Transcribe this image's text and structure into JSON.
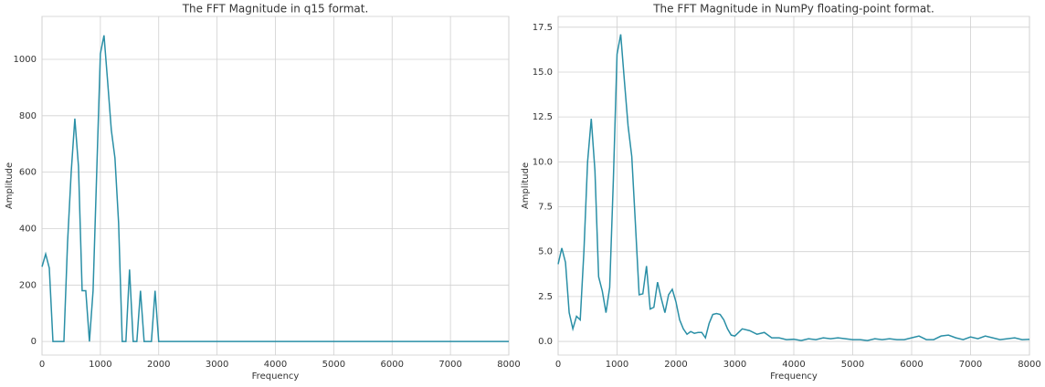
{
  "chart_data": [
    {
      "type": "line",
      "title": "The FFT Magnitude in q15 format.",
      "x_label": "Frequency",
      "y_label": "Amplitude",
      "xlim": [
        0,
        8000
      ],
      "ylim": [
        -48,
        1152
      ],
      "xticks": [
        0,
        1000,
        2000,
        3000,
        4000,
        5000,
        6000,
        7000,
        8000
      ],
      "yticks": [
        0,
        200,
        400,
        600,
        800,
        1000
      ],
      "grid": true,
      "x": [
        0,
        62.5,
        125,
        187.5,
        250,
        312.5,
        375,
        437.5,
        500,
        562.5,
        625,
        687.5,
        750,
        812.5,
        875,
        937.5,
        1000,
        1062.5,
        1125,
        1187.5,
        1250,
        1312.5,
        1375,
        1437.5,
        1500,
        1562.5,
        1625,
        1687.5,
        1750,
        1812.5,
        1875,
        1937.5,
        2000,
        8000
      ],
      "series": [
        {
          "name": "q15",
          "color": "#2a8fa6",
          "values": [
            265,
            310,
            260,
            0,
            0,
            0,
            0,
            350,
            600,
            790,
            620,
            180,
            180,
            0,
            180,
            600,
            1020,
            1085,
            920,
            750,
            650,
            420,
            0,
            0,
            255,
            0,
            0,
            180,
            0,
            0,
            0,
            180,
            0,
            0
          ]
        }
      ]
    },
    {
      "type": "line",
      "title": "The FFT Magnitude in NumPy floating-point format.",
      "x_label": "Frequency",
      "y_label": "Amplitude",
      "xlim": [
        0,
        8000
      ],
      "ylim": [
        -0.76,
        18.1
      ],
      "xticks": [
        0,
        1000,
        2000,
        3000,
        4000,
        5000,
        6000,
        7000,
        8000
      ],
      "yticks": [
        {
          "value": 0,
          "label": "0.0"
        },
        2.5,
        {
          "value": 5,
          "label": "5.0"
        },
        7.5,
        {
          "value": 10,
          "label": "10.0"
        },
        12.5,
        {
          "value": 15,
          "label": "15.0"
        },
        17.5
      ],
      "grid": true,
      "x": [
        0,
        62.5,
        125,
        187.5,
        250,
        312.5,
        375,
        437.5,
        500,
        562.5,
        625,
        687.5,
        750,
        812.5,
        875,
        937.5,
        1000,
        1062.5,
        1125,
        1187.5,
        1250,
        1312.5,
        1375,
        1437.5,
        1500,
        1562.5,
        1625,
        1687.5,
        1750,
        1812.5,
        1875,
        1937.5,
        2000,
        2062.5,
        2125,
        2187.5,
        2250,
        2312.5,
        2375,
        2437.5,
        2500,
        2562.5,
        2625,
        2687.5,
        2750,
        2812.5,
        2875,
        2937.5,
        3000,
        3125,
        3250,
        3375,
        3500,
        3625,
        3750,
        3875,
        4000,
        4125,
        4250,
        4375,
        4500,
        4625,
        4750,
        4875,
        5000,
        5125,
        5250,
        5375,
        5500,
        5625,
        5750,
        5875,
        6000,
        6125,
        6250,
        6375,
        6500,
        6625,
        6750,
        6875,
        7000,
        7125,
        7250,
        7375,
        7500,
        7625,
        7750,
        7875,
        8000
      ],
      "series": [
        {
          "name": "numpy",
          "color": "#2a8fa6",
          "values": [
            4.3,
            5.2,
            4.4,
            1.6,
            0.7,
            1.4,
            1.2,
            5,
            10,
            12.4,
            9.5,
            3.6,
            2.8,
            1.6,
            3,
            9,
            16,
            17.1,
            14.5,
            12,
            10.3,
            6.5,
            2.6,
            2.65,
            4.2,
            1.8,
            1.9,
            3.3,
            2.4,
            1.6,
            2.6,
            2.9,
            2.2,
            1.2,
            0.7,
            0.4,
            0.55,
            0.45,
            0.5,
            0.5,
            0.2,
            1.0,
            1.5,
            1.55,
            1.5,
            1.2,
            0.7,
            0.35,
            0.3,
            0.7,
            0.6,
            0.4,
            0.5,
            0.2,
            0.2,
            0.1,
            0.12,
            0.05,
            0.15,
            0.1,
            0.2,
            0.15,
            0.2,
            0.15,
            0.1,
            0.1,
            0.05,
            0.15,
            0.1,
            0.15,
            0.1,
            0.1,
            0.2,
            0.3,
            0.1,
            0.1,
            0.3,
            0.35,
            0.2,
            0.1,
            0.25,
            0.15,
            0.3,
            0.2,
            0.1,
            0.15,
            0.2,
            0.1,
            0.12
          ]
        }
      ]
    }
  ]
}
